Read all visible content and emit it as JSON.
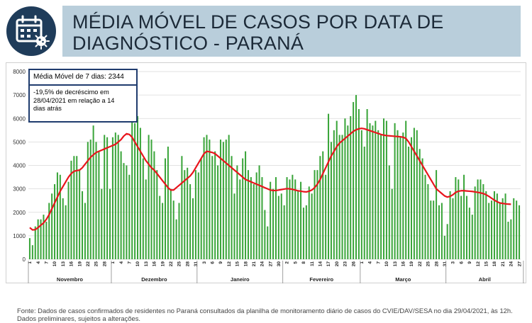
{
  "header": {
    "title": "MÉDIA MÓVEL DE CASOS POR DATA DE\nDIAGNÓSTICO - PARANÁ",
    "icon": "calendar-virus-icon",
    "icon_bg": "#1f3c5a",
    "accent": "#b9cedb"
  },
  "annotation": {
    "moving_average": "Média Móvel de 7 dias: 2344",
    "decrease_lines": [
      "-19,5% de decréscimo em",
      "28/04/2021  em relação a 14",
      "dias atrás"
    ]
  },
  "footer": {
    "source": "Fonte: Dados de casos confirmados de residentes no Paraná consultados da planilha de monitoramento diário de casos do CVIE/DAV/SESA no dia 29/04/2021, às 12h. Dados preliminares, sujeitos a alterações."
  },
  "chart_data": {
    "type": "bar",
    "title": "",
    "xlabel": "",
    "ylabel": "",
    "ylim": [
      0,
      8000
    ],
    "y_ticks": [
      "0",
      "1000",
      "2000",
      "3000",
      "4000",
      "5000",
      "6000",
      "7000",
      "8000"
    ],
    "grid": true,
    "bar_color": "#3aa53a",
    "line_color": "#e8141c",
    "months": [
      "Novembro",
      "Dezembro",
      "Janeiro",
      "Fevereiro",
      "Março",
      "Abril"
    ],
    "month_lengths": [
      30,
      31,
      31,
      28,
      31,
      28
    ],
    "tick_labels": [
      "1",
      "4",
      "7",
      "10",
      "13",
      "16",
      "19",
      "22",
      "25",
      "28",
      "1",
      "4",
      "7",
      "10",
      "13",
      "16",
      "19",
      "22",
      "25",
      "28",
      "31",
      "3",
      "6",
      "9",
      "12",
      "15",
      "18",
      "21",
      "24",
      "27",
      "30",
      "2",
      "5",
      "8",
      "11",
      "14",
      "17",
      "20",
      "23",
      "26",
      "1",
      "4",
      "7",
      "10",
      "13",
      "16",
      "19",
      "22",
      "25",
      "28",
      "31",
      "3",
      "6",
      "9",
      "12",
      "15",
      "18",
      "21",
      "24",
      "27"
    ],
    "series": [
      {
        "name": "",
        "type": "bar",
        "values": [
          900,
          600,
          1400,
          1700,
          1700,
          1900,
          1600,
          2400,
          2800,
          3200,
          3700,
          3600,
          2600,
          2300,
          3300,
          4200,
          4400,
          4400,
          3800,
          2900,
          2400,
          5000,
          5100,
          5700,
          5000,
          4600,
          3000,
          5300,
          5200,
          3000,
          5200,
          5400,
          5300,
          4600,
          4100,
          4000,
          3600,
          5900,
          5800,
          6100,
          5600,
          4300,
          3400,
          5300,
          5100,
          4600,
          3800,
          2700,
          2400,
          4300,
          4800,
          3000,
          2500,
          1700,
          2400,
          4400,
          3800,
          3900,
          3200,
          2600,
          3800,
          3700,
          4300,
          5200,
          5300,
          5100,
          4400,
          4600,
          4000,
          5100,
          5000,
          5100,
          5300,
          4400,
          2800,
          4000,
          3400,
          4300,
          4600,
          3800,
          3500,
          3200,
          3700,
          4000,
          3500,
          2100,
          1400,
          3300,
          3000,
          3500,
          2700,
          2800,
          2300,
          3500,
          3400,
          3600,
          3400,
          2900,
          3300,
          2200,
          2300,
          3100,
          2800,
          3800,
          3800,
          4400,
          4600,
          3600,
          6200,
          5000,
          5500,
          5900,
          5300,
          5300,
          6000,
          5700,
          6100,
          6700,
          7000,
          6400,
          5500,
          4800,
          6400,
          5800,
          5700,
          5900,
          5500,
          5300,
          6000,
          5900,
          4000,
          3000,
          5800,
          5500,
          5200,
          5400,
          5900,
          4800,
          5200,
          5600,
          5500,
          4700,
          4300,
          3600,
          3200,
          2500,
          2500,
          3800,
          2300,
          2400,
          1000,
          1500,
          2900,
          2600,
          3500,
          3400,
          2700,
          3600,
          2700,
          2200,
          1900,
          3100,
          3400,
          3400,
          3200,
          2900,
          2400,
          2500,
          2900,
          2800,
          2400,
          2600,
          2800,
          1600,
          1700,
          2600,
          2500,
          2300
        ]
      },
      {
        "name": "",
        "type": "line",
        "values": [
          1350,
          1250,
          1260,
          1350,
          1450,
          1550,
          1700,
          1900,
          2150,
          2400,
          2650,
          2900,
          3100,
          3300,
          3500,
          3650,
          3750,
          3780,
          3800,
          3900,
          4050,
          4200,
          4350,
          4450,
          4550,
          4600,
          4650,
          4700,
          4750,
          4800,
          4850,
          4900,
          5000,
          5100,
          5250,
          5350,
          5320,
          5200,
          5000,
          4800,
          4600,
          4400,
          4200,
          4050,
          3900,
          3800,
          3650,
          3500,
          3350,
          3200,
          3050,
          2950,
          2950,
          3050,
          3150,
          3250,
          3350,
          3450,
          3550,
          3700,
          3900,
          4100,
          4300,
          4500,
          4600,
          4580,
          4550,
          4500,
          4400,
          4300,
          4200,
          4100,
          4000,
          3900,
          3800,
          3700,
          3600,
          3500,
          3400,
          3350,
          3300,
          3250,
          3200,
          3150,
          3100,
          3050,
          3000,
          2950,
          2930,
          2930,
          2950,
          2970,
          2990,
          3010,
          3000,
          2980,
          2950,
          2920,
          2900,
          2880,
          2870,
          2900,
          2950,
          3050,
          3200,
          3400,
          3650,
          3900,
          4150,
          4400,
          4600,
          4800,
          4950,
          5050,
          5150,
          5250,
          5350,
          5450,
          5520,
          5560,
          5580,
          5560,
          5520,
          5480,
          5440,
          5400,
          5360,
          5320,
          5290,
          5270,
          5260,
          5250,
          5240,
          5230,
          5220,
          5200,
          5150,
          5000,
          4800,
          4600,
          4400,
          4200,
          4000,
          3800,
          3600,
          3400,
          3200,
          3000,
          2900,
          2800,
          2700,
          2650,
          2680,
          2750,
          2850,
          2900,
          2920,
          2920,
          2910,
          2900,
          2890,
          2870,
          2850,
          2830,
          2800,
          2750,
          2680,
          2600,
          2520,
          2450,
          2400,
          2380,
          2360,
          2350,
          2344
        ]
      }
    ]
  }
}
